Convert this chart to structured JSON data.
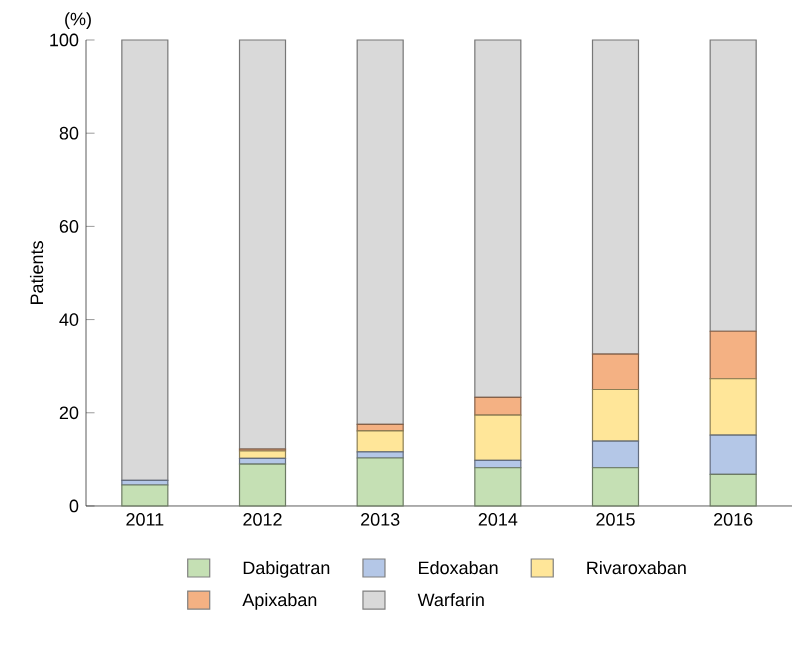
{
  "chart_data": {
    "type": "bar",
    "stacked": true,
    "ylabel": "Patients",
    "annotations": [
      "(%)"
    ],
    "categories": [
      "2011",
      "2012",
      "2013",
      "2014",
      "2015",
      "2016"
    ],
    "series": [
      {
        "name": "Dabigatran",
        "color": "#c5e0b4",
        "values": [
          4.5,
          9.0,
          10.3,
          8.2,
          8.2,
          6.8
        ]
      },
      {
        "name": "Edoxaban",
        "color": "#b4c7e7",
        "values": [
          1.0,
          1.2,
          1.3,
          1.6,
          5.7,
          8.4
        ]
      },
      {
        "name": "Rivaroxaban",
        "color": "#ffe699",
        "values": [
          0,
          1.6,
          4.5,
          9.7,
          11.1,
          12.1
        ]
      },
      {
        "name": "Apixaban",
        "color": "#f4b183",
        "values": [
          0,
          0.4,
          1.4,
          3.8,
          7.6,
          10.2
        ]
      },
      {
        "name": "Warfarin",
        "color": "#d9d9d9",
        "values": [
          94.5,
          87.8,
          82.5,
          76.7,
          67.4,
          62.5
        ]
      }
    ],
    "ylim": [
      0,
      100
    ],
    "yticks": [
      0,
      20,
      40,
      60,
      80,
      100
    ],
    "grid": false,
    "legend": "bottom"
  }
}
